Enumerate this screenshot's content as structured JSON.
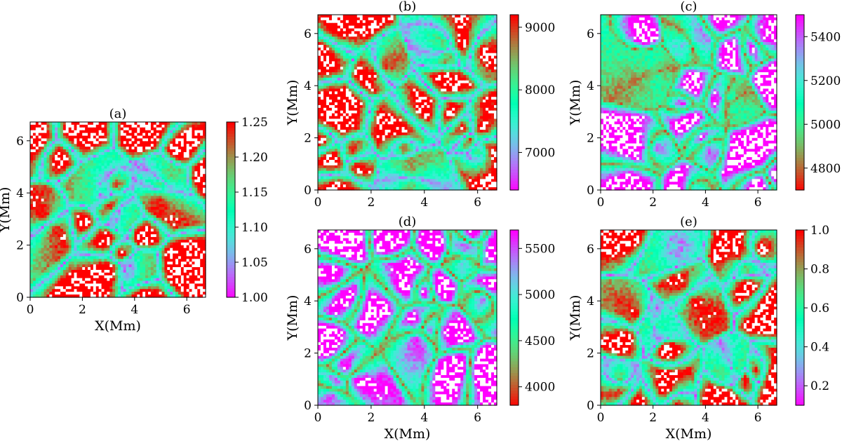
{
  "chart_data": [
    {
      "id": "a",
      "type": "heatmap",
      "title": "(a)",
      "xlabel": "X(Mm)",
      "ylabel": "Y(Mm)",
      "xlim": [
        0,
        6.72
      ],
      "ylim": [
        0,
        6.72
      ],
      "xticks": [
        "0",
        "2",
        "4",
        "6"
      ],
      "yticks": [
        "0",
        "2",
        "4",
        "6"
      ],
      "colorbar": {
        "min": 1.0,
        "max": 1.25,
        "reversed": false,
        "ticks": [
          "1.00",
          "1.05",
          "1.10",
          "1.15",
          "1.20",
          "1.25"
        ],
        "tick_values": [
          1.0,
          1.05,
          1.1,
          1.15,
          1.2,
          1.25
        ]
      },
      "colormap": "rainbow",
      "grid": 64,
      "seed": 11
    },
    {
      "id": "b",
      "type": "heatmap",
      "title": "(b)",
      "xlabel": "",
      "ylabel": "Y(Mm)",
      "xlim": [
        0,
        6.72
      ],
      "ylim": [
        0,
        6.72
      ],
      "xticks": [
        "0",
        "2",
        "4",
        "6"
      ],
      "yticks": [
        "0",
        "2",
        "4",
        "6"
      ],
      "colorbar": {
        "min": 6400,
        "max": 9200,
        "reversed": false,
        "ticks": [
          "7000",
          "8000",
          "9000"
        ],
        "tick_values": [
          7000,
          8000,
          9000
        ]
      },
      "colormap": "rainbow",
      "grid": 64,
      "seed": 23
    },
    {
      "id": "c",
      "type": "heatmap",
      "title": "(c)",
      "xlabel": "",
      "ylabel": "Y(Mm)",
      "xlim": [
        0,
        6.72
      ],
      "ylim": [
        0,
        6.72
      ],
      "xticks": [
        "0",
        "2",
        "4",
        "6"
      ],
      "yticks": [
        "0",
        "2",
        "4",
        "6"
      ],
      "colorbar": {
        "min": 4700,
        "max": 5500,
        "reversed": true,
        "ticks": [
          "4800",
          "5000",
          "5200",
          "5400"
        ],
        "tick_values": [
          4800,
          5000,
          5200,
          5400
        ]
      },
      "colormap": "rainbow",
      "grid": 64,
      "seed": 37
    },
    {
      "id": "d",
      "type": "heatmap",
      "title": "(d)",
      "xlabel": "X(Mm)",
      "ylabel": "Y(Mm)",
      "xlim": [
        0,
        6.72
      ],
      "ylim": [
        0,
        6.72
      ],
      "xticks": [
        "0",
        "2",
        "4",
        "6"
      ],
      "yticks": [
        "0",
        "2",
        "4",
        "6"
      ],
      "colorbar": {
        "min": 3800,
        "max": 5700,
        "reversed": true,
        "ticks": [
          "4000",
          "4500",
          "5000",
          "5500"
        ],
        "tick_values": [
          4000,
          4500,
          5000,
          5500
        ]
      },
      "colormap": "rainbow",
      "grid": 64,
      "seed": 51
    },
    {
      "id": "e",
      "type": "heatmap",
      "title": "(e)",
      "xlabel": "X(Mm)",
      "ylabel": "Y(Mm)",
      "xlim": [
        0,
        6.72
      ],
      "ylim": [
        0,
        6.72
      ],
      "xticks": [
        "0",
        "2",
        "4",
        "6"
      ],
      "yticks": [
        "0",
        "2",
        "4",
        "6"
      ],
      "colorbar": {
        "min": 0.1,
        "max": 1.0,
        "reversed": false,
        "ticks": [
          "0.2",
          "0.4",
          "0.6",
          "0.8",
          "1.0"
        ],
        "tick_values": [
          0.2,
          0.4,
          0.6,
          0.8,
          1.0
        ]
      },
      "colormap": "rainbow",
      "grid": 64,
      "seed": 67
    }
  ]
}
